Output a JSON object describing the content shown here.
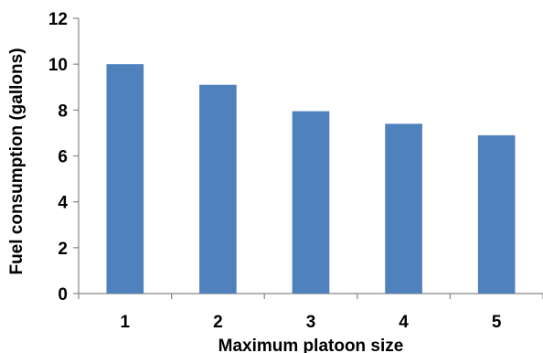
{
  "chart_data": {
    "type": "bar",
    "categories": [
      "1",
      "2",
      "3",
      "4",
      "5"
    ],
    "values": [
      10.0,
      9.1,
      7.95,
      7.4,
      6.9
    ],
    "title": "",
    "xlabel": "Maximum platoon size",
    "ylabel": "Fuel consumption (gallons)",
    "ylim": [
      0,
      12
    ],
    "yticks": [
      "0",
      "2",
      "4",
      "6",
      "8",
      "10",
      "12"
    ],
    "grid": false,
    "legend": "none",
    "bar_color": "#4F81BD",
    "axis_color": "#868686"
  }
}
